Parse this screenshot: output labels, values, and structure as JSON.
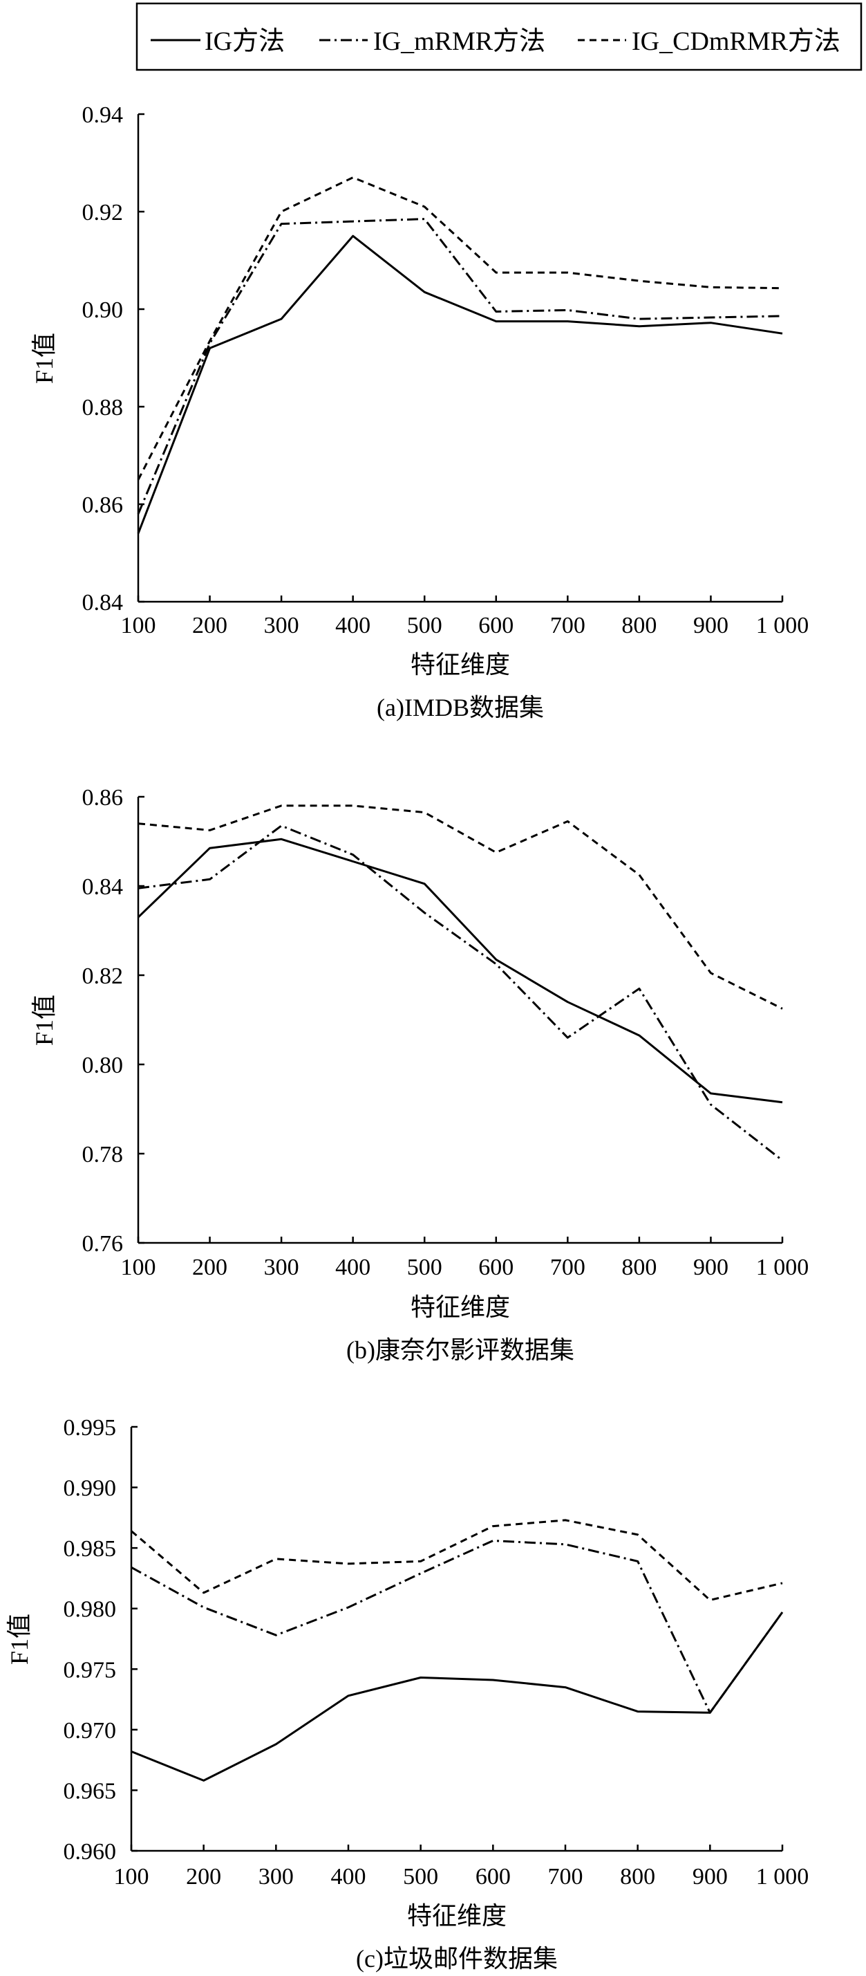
{
  "legend": {
    "items": [
      {
        "label": "IG方法",
        "style": "solid"
      },
      {
        "label": "IG_mRMR方法",
        "style": "dashdot"
      },
      {
        "label": "IG_CDmRMR方法",
        "style": "dashed"
      }
    ]
  },
  "chart_data": [
    {
      "type": "line",
      "caption": "(a)IMDB数据集",
      "xlabel": "特征维度",
      "ylabel": "F1值",
      "x": [
        100,
        200,
        300,
        400,
        500,
        600,
        700,
        800,
        900,
        1000
      ],
      "x_tick_labels": [
        "100",
        "200",
        "300",
        "400",
        "500",
        "600",
        "700",
        "800",
        "900",
        "1 000"
      ],
      "ylim": [
        0.84,
        0.94
      ],
      "y_ticks": [
        0.84,
        0.86,
        0.88,
        0.9,
        0.92,
        0.94
      ],
      "y_tick_labels": [
        "0.84",
        "0.86",
        "0.88",
        "0.90",
        "0.92",
        "0.94"
      ],
      "series": [
        {
          "name": "IG方法",
          "style": "solid",
          "values": [
            0.854,
            0.892,
            0.898,
            0.915,
            0.9035,
            0.8975,
            0.8975,
            0.8965,
            0.8972,
            0.895
          ]
        },
        {
          "name": "IG_mRMR方法",
          "style": "dashdot",
          "values": [
            0.858,
            0.893,
            0.9175,
            0.918,
            0.9185,
            0.8995,
            0.8998,
            0.898,
            0.8983,
            0.8986
          ]
        },
        {
          "name": "IG_CDmRMR方法",
          "style": "dashed",
          "values": [
            0.865,
            0.8935,
            0.92,
            0.927,
            0.921,
            0.9075,
            0.9075,
            0.9058,
            0.9045,
            0.9043
          ]
        }
      ]
    },
    {
      "type": "line",
      "caption": "(b)康奈尔影评数据集",
      "xlabel": "特征维度",
      "ylabel": "F1值",
      "x": [
        100,
        200,
        300,
        400,
        500,
        600,
        700,
        800,
        900,
        1000
      ],
      "x_tick_labels": [
        "100",
        "200",
        "300",
        "400",
        "500",
        "600",
        "700",
        "800",
        "900",
        "1 000"
      ],
      "ylim": [
        0.76,
        0.86
      ],
      "y_ticks": [
        0.76,
        0.78,
        0.8,
        0.82,
        0.84,
        0.86
      ],
      "y_tick_labels": [
        "0.76",
        "0.78",
        "0.80",
        "0.82",
        "0.84",
        "0.86"
      ],
      "series": [
        {
          "name": "IG方法",
          "style": "solid",
          "values": [
            0.833,
            0.8485,
            0.8505,
            0.8455,
            0.8405,
            0.8235,
            0.814,
            0.8065,
            0.7935,
            0.7915
          ]
        },
        {
          "name": "IG_mRMR方法",
          "style": "dashdot",
          "values": [
            0.8395,
            0.8415,
            0.8535,
            0.847,
            0.834,
            0.8225,
            0.806,
            0.817,
            0.791,
            0.7785
          ]
        },
        {
          "name": "IG_CDmRMR方法",
          "style": "dashed",
          "values": [
            0.854,
            0.8525,
            0.858,
            0.858,
            0.8565,
            0.8475,
            0.8545,
            0.8425,
            0.8205,
            0.8125
          ]
        }
      ]
    },
    {
      "type": "line",
      "caption": "(c)垃圾邮件数据集",
      "xlabel": "特征维度",
      "ylabel": "F1值",
      "x": [
        100,
        200,
        300,
        400,
        500,
        600,
        700,
        800,
        900,
        1000
      ],
      "x_tick_labels": [
        "100",
        "200",
        "300",
        "400",
        "500",
        "600",
        "700",
        "800",
        "900",
        "1 000"
      ],
      "ylim": [
        0.96,
        0.995
      ],
      "y_ticks": [
        0.96,
        0.965,
        0.97,
        0.975,
        0.98,
        0.985,
        0.99,
        0.995
      ],
      "y_tick_labels": [
        "0.960",
        "0.965",
        "0.970",
        "0.975",
        "0.980",
        "0.985",
        "0.990",
        "0.995"
      ],
      "series": [
        {
          "name": "IG方法",
          "style": "solid",
          "values": [
            0.9682,
            0.9658,
            0.9688,
            0.9728,
            0.9743,
            0.9741,
            0.9735,
            0.9715,
            0.9714,
            0.9797
          ]
        },
        {
          "name": "IG_mRMR方法",
          "style": "dashdot",
          "values": [
            0.9834,
            0.9801,
            0.9778,
            0.9801,
            0.9829,
            0.9856,
            0.9853,
            0.9839,
            0.9714,
            0.9797
          ]
        },
        {
          "name": "IG_CDmRMR方法",
          "style": "dashed",
          "values": [
            0.9864,
            0.9813,
            0.9841,
            0.9837,
            0.9839,
            0.9868,
            0.9873,
            0.9861,
            0.9807,
            0.9821
          ]
        }
      ]
    }
  ]
}
